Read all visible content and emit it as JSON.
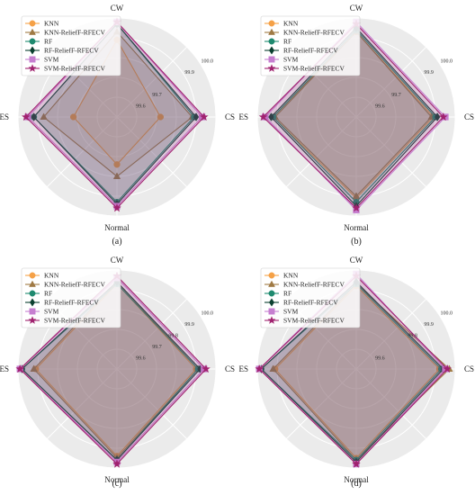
{
  "chart_data": [
    {
      "type": "radar",
      "caption": "(a)",
      "axes": [
        "CW",
        "CS",
        "Normal",
        "ES"
      ],
      "rlim": [
        99.5,
        100.0
      ],
      "rticks": [
        99.6,
        99.7,
        99.8,
        99.9,
        100.0
      ],
      "rtick_labels": [
        "99.6",
        "99.7",
        "",
        "99.9",
        "100.0"
      ],
      "legend_position": "top-left",
      "series": [
        {
          "name": "KNN",
          "marker": "circle",
          "color": "#f5a147",
          "values": [
            99.89,
            99.72,
            99.74,
            99.72
          ]
        },
        {
          "name": "KNN-ReliefF-RFECV",
          "marker": "triangle",
          "color": "#a07a44",
          "values": [
            99.93,
            99.88,
            99.8,
            99.87
          ]
        },
        {
          "name": "RF",
          "marker": "circle",
          "color": "#1e8a6f",
          "values": [
            99.97,
            99.89,
            99.93,
            99.92
          ]
        },
        {
          "name": "RF-ReliefF-RFECV",
          "marker": "diamond",
          "color": "#0b4030",
          "values": [
            99.97,
            99.9,
            99.94,
            99.92
          ]
        },
        {
          "name": "SVM",
          "marker": "square",
          "color": "#c67fd0",
          "values": [
            99.98,
            99.93,
            99.95,
            99.95
          ]
        },
        {
          "name": "SVM-ReliefF-RFECV",
          "marker": "star",
          "color": "#a0226f",
          "values": [
            99.98,
            99.94,
            99.96,
            99.96
          ]
        }
      ]
    },
    {
      "type": "radar",
      "caption": "(b)",
      "axes": [
        "CW",
        "CS",
        "Normal",
        "ES"
      ],
      "rlim": [
        99.5,
        100.0
      ],
      "rticks": [
        99.6,
        99.7,
        99.8,
        99.9,
        100.0
      ],
      "rtick_labels": [
        "99.6",
        "99.7",
        "",
        "99.9",
        "100.0"
      ],
      "legend_position": "top-left",
      "series": [
        {
          "name": "KNN",
          "marker": "circle",
          "color": "#f5a147",
          "values": [
            99.93,
            99.89,
            99.91,
            99.92
          ]
        },
        {
          "name": "KNN-ReliefF-RFECV",
          "marker": "triangle",
          "color": "#a07a44",
          "values": [
            99.93,
            99.88,
            99.9,
            99.91
          ]
        },
        {
          "name": "RF",
          "marker": "circle",
          "color": "#1e8a6f",
          "values": [
            99.94,
            99.9,
            99.93,
            99.92
          ]
        },
        {
          "name": "RF-ReliefF-RFECV",
          "marker": "diamond",
          "color": "#0b4030",
          "values": [
            99.95,
            99.91,
            99.95,
            99.93
          ]
        },
        {
          "name": "SVM",
          "marker": "square",
          "color": "#c67fd0",
          "values": [
            99.98,
            99.95,
            99.97,
            99.96
          ]
        },
        {
          "name": "SVM-ReliefF-RFECV",
          "marker": "star",
          "color": "#a0226f",
          "values": [
            99.97,
            99.94,
            99.96,
            99.97
          ]
        }
      ]
    },
    {
      "type": "radar",
      "caption": "(c)",
      "axes": [
        "CW",
        "CS",
        "Normal",
        "ES"
      ],
      "rlim": [
        99.5,
        100.0
      ],
      "rticks": [
        99.6,
        99.7,
        99.8,
        99.9,
        100.0
      ],
      "rtick_labels": [
        "99.6",
        "99.7",
        "99.8",
        "99.9",
        "100.0"
      ],
      "legend_position": "top-left",
      "series": [
        {
          "name": "KNN",
          "marker": "circle",
          "color": "#f5a147",
          "values": [
            99.93,
            99.9,
            99.94,
            99.91
          ]
        },
        {
          "name": "KNN-ReliefF-RFECV",
          "marker": "triangle",
          "color": "#a07a44",
          "values": [
            99.94,
            99.91,
            99.95,
            99.92
          ]
        },
        {
          "name": "RF",
          "marker": "circle",
          "color": "#1e8a6f",
          "values": [
            99.93,
            99.91,
            99.96,
            99.98
          ]
        },
        {
          "name": "RF-ReliefF-RFECV",
          "marker": "diamond",
          "color": "#0b4030",
          "values": [
            99.94,
            99.92,
            99.96,
            99.98
          ]
        },
        {
          "name": "SVM",
          "marker": "square",
          "color": "#c67fd0",
          "values": [
            99.96,
            99.94,
            99.97,
            99.99
          ]
        },
        {
          "name": "SVM-ReliefF-RFECV",
          "marker": "star",
          "color": "#a0226f",
          "values": [
            99.97,
            99.95,
            99.98,
            99.99
          ]
        }
      ]
    },
    {
      "type": "radar",
      "caption": "(d)",
      "axes": [
        "CW",
        "CS",
        "Normal",
        "ES"
      ],
      "rlim": [
        99.5,
        100.0
      ],
      "rticks": [
        99.6,
        99.7,
        99.8,
        99.9,
        100.0
      ],
      "rtick_labels": [
        "99.6",
        "",
        "99.8",
        "99.9",
        "100.0"
      ],
      "legend_position": "top-left",
      "series": [
        {
          "name": "KNN",
          "marker": "circle",
          "color": "#f5a147",
          "values": [
            99.92,
            99.92,
            99.95,
            99.91
          ]
        },
        {
          "name": "KNN-ReliefF-RFECV",
          "marker": "triangle",
          "color": "#a07a44",
          "values": [
            99.93,
            99.97,
            99.96,
            99.92
          ]
        },
        {
          "name": "RF",
          "marker": "circle",
          "color": "#1e8a6f",
          "values": [
            99.93,
            99.93,
            99.96,
            99.98
          ]
        },
        {
          "name": "RF-ReliefF-RFECV",
          "marker": "diamond",
          "color": "#0b4030",
          "values": [
            99.94,
            99.94,
            99.97,
            99.98
          ]
        },
        {
          "name": "SVM",
          "marker": "square",
          "color": "#c67fd0",
          "values": [
            99.98,
            99.95,
            99.98,
            99.99
          ]
        },
        {
          "name": "SVM-ReliefF-RFECV",
          "marker": "star",
          "color": "#a0226f",
          "values": [
            99.97,
            99.96,
            99.98,
            99.99
          ]
        }
      ]
    }
  ]
}
